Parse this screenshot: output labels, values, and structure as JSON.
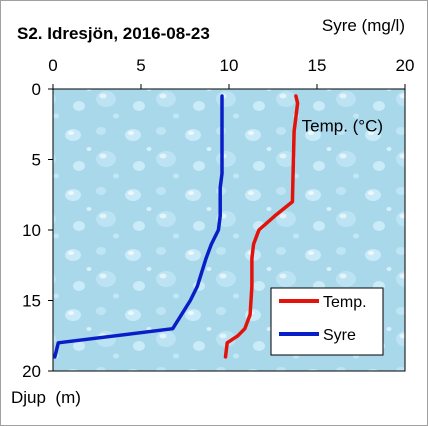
{
  "chart_data": {
    "type": "line",
    "title": "S2. Idresjön, 2016-08-23",
    "xlabel": "Syre (mg/l)",
    "ylabel": "Djup  (m)",
    "xlim": [
      0,
      20
    ],
    "ylim": [
      0,
      20
    ],
    "y_inverted": true,
    "x_axis_position": "top",
    "x_ticks": [
      "0",
      "5",
      "10",
      "15",
      "20"
    ],
    "y_ticks": [
      "0",
      "5",
      "10",
      "15",
      "20"
    ],
    "grid": false,
    "legend_position": "bottom-right",
    "background": "water-droplet texture",
    "annotations": [
      {
        "text": "Temp. (°C)",
        "x": 13.9,
        "y": 2.6
      }
    ],
    "series": [
      {
        "name": "Temp.",
        "color": "#e3120b",
        "x": [
          13.8,
          13.9,
          13.8,
          13.7,
          13.6,
          12.6,
          11.7,
          11.4,
          11.3,
          11.3,
          11.3,
          11.2,
          10.9,
          10.5,
          9.9,
          9.8
        ],
        "y": [
          0.5,
          1,
          2,
          3,
          8,
          9,
          10,
          11,
          12,
          13,
          14,
          16,
          17,
          17.5,
          18,
          19
        ]
      },
      {
        "name": "Syre",
        "color": "#0a1ec8",
        "x": [
          9.6,
          9.6,
          9.6,
          9.5,
          9.5,
          9.4,
          9.0,
          8.7,
          8.2,
          7.8,
          6.8,
          0.3,
          0.1
        ],
        "y": [
          0.5,
          3,
          6,
          7,
          9,
          10,
          11,
          12,
          14,
          15,
          17,
          18,
          19
        ]
      }
    ]
  }
}
